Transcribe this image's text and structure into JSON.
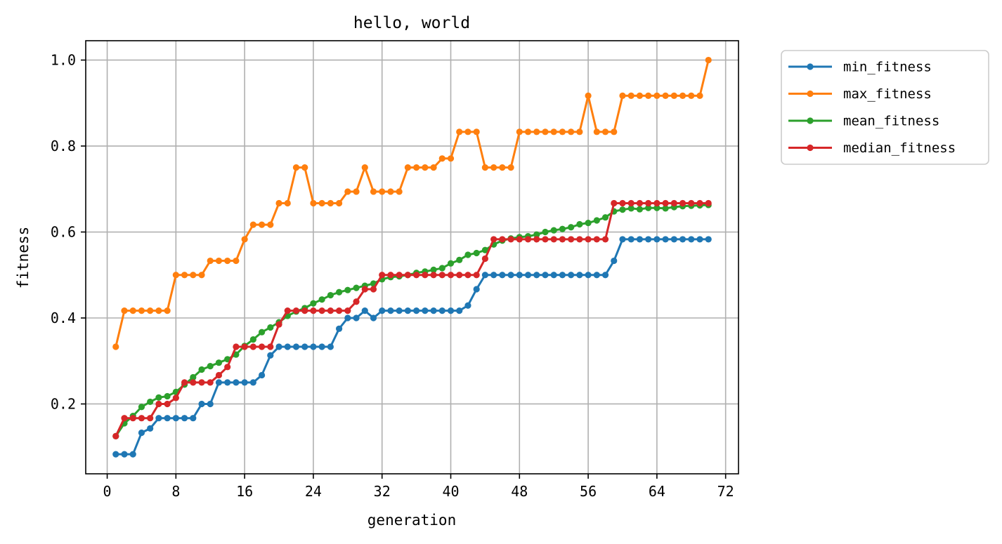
{
  "chart_data": {
    "type": "line",
    "title": "hello, world",
    "xlabel": "generation",
    "ylabel": "fitness",
    "xlim": [
      -2.5,
      73.5
    ],
    "ylim": [
      0.0375,
      1.045
    ],
    "xticks": [
      0,
      8,
      16,
      24,
      32,
      40,
      48,
      56,
      64,
      72
    ],
    "yticks": [
      0.2,
      0.4,
      0.6,
      0.8,
      1.0
    ],
    "ytick_labels": [
      "0.2",
      "0.4",
      "0.6",
      "0.8",
      "1.0"
    ],
    "grid": true,
    "legend_position": "outside-upper-right",
    "x": [
      1,
      2,
      3,
      4,
      5,
      6,
      7,
      8,
      9,
      10,
      11,
      12,
      13,
      14,
      15,
      16,
      17,
      18,
      19,
      20,
      21,
      22,
      23,
      24,
      25,
      26,
      27,
      28,
      29,
      30,
      31,
      32,
      33,
      34,
      35,
      36,
      37,
      38,
      39,
      40,
      41,
      42,
      43,
      44,
      45,
      46,
      47,
      48,
      49,
      50,
      51,
      52,
      53,
      54,
      55,
      56,
      57,
      58,
      59,
      60,
      61,
      62,
      63,
      64,
      65,
      66,
      67,
      68,
      69,
      70
    ],
    "series": [
      {
        "name": "min_fitness",
        "color": "#1f77b4",
        "values": [
          0.083,
          0.083,
          0.083,
          0.133,
          0.143,
          0.167,
          0.167,
          0.167,
          0.167,
          0.167,
          0.2,
          0.2,
          0.25,
          0.25,
          0.25,
          0.25,
          0.25,
          0.267,
          0.313,
          0.333,
          0.333,
          0.333,
          0.333,
          0.333,
          0.333,
          0.333,
          0.375,
          0.4,
          0.4,
          0.417,
          0.4,
          0.417,
          0.417,
          0.417,
          0.417,
          0.417,
          0.417,
          0.417,
          0.417,
          0.417,
          0.417,
          0.429,
          0.467,
          0.5,
          0.5,
          0.5,
          0.5,
          0.5,
          0.5,
          0.5,
          0.5,
          0.5,
          0.5,
          0.5,
          0.5,
          0.5,
          0.5,
          0.5,
          0.533,
          0.583,
          0.583,
          0.583,
          0.583,
          0.583,
          0.583,
          0.583,
          0.583,
          0.583,
          0.583,
          0.583
        ]
      },
      {
        "name": "max_fitness",
        "color": "#ff7f0e",
        "values": [
          0.333,
          0.417,
          0.417,
          0.417,
          0.417,
          0.417,
          0.417,
          0.5,
          0.5,
          0.5,
          0.5,
          0.533,
          0.533,
          0.533,
          0.533,
          0.583,
          0.617,
          0.617,
          0.617,
          0.667,
          0.667,
          0.75,
          0.75,
          0.667,
          0.667,
          0.667,
          0.667,
          0.694,
          0.694,
          0.75,
          0.694,
          0.694,
          0.694,
          0.694,
          0.75,
          0.75,
          0.75,
          0.75,
          0.771,
          0.771,
          0.833,
          0.833,
          0.833,
          0.75,
          0.75,
          0.75,
          0.75,
          0.833,
          0.833,
          0.833,
          0.833,
          0.833,
          0.833,
          0.833,
          0.833,
          0.917,
          0.833,
          0.833,
          0.833,
          0.917,
          0.917,
          0.917,
          0.917,
          0.917,
          0.917,
          0.917,
          0.917,
          0.917,
          0.917,
          1.0
        ]
      },
      {
        "name": "mean_fitness",
        "color": "#2ca02c",
        "values": [
          0.125,
          0.155,
          0.172,
          0.193,
          0.205,
          0.215,
          0.218,
          0.228,
          0.245,
          0.262,
          0.28,
          0.288,
          0.296,
          0.304,
          0.315,
          0.335,
          0.35,
          0.367,
          0.378,
          0.39,
          0.405,
          0.415,
          0.423,
          0.434,
          0.443,
          0.453,
          0.46,
          0.465,
          0.47,
          0.475,
          0.48,
          0.49,
          0.495,
          0.497,
          0.5,
          0.505,
          0.508,
          0.512,
          0.516,
          0.527,
          0.535,
          0.547,
          0.551,
          0.558,
          0.571,
          0.58,
          0.585,
          0.588,
          0.59,
          0.594,
          0.6,
          0.604,
          0.607,
          0.611,
          0.618,
          0.621,
          0.627,
          0.634,
          0.648,
          0.652,
          0.655,
          0.653,
          0.656,
          0.656,
          0.655,
          0.658,
          0.66,
          0.661,
          0.662,
          0.663
        ]
      },
      {
        "name": "median_fitness",
        "color": "#d62728",
        "values": [
          0.125,
          0.167,
          0.167,
          0.167,
          0.167,
          0.2,
          0.2,
          0.214,
          0.25,
          0.25,
          0.25,
          0.25,
          0.267,
          0.286,
          0.333,
          0.333,
          0.333,
          0.333,
          0.333,
          0.385,
          0.417,
          0.417,
          0.417,
          0.417,
          0.417,
          0.417,
          0.417,
          0.417,
          0.438,
          0.467,
          0.467,
          0.5,
          0.5,
          0.5,
          0.5,
          0.5,
          0.5,
          0.5,
          0.5,
          0.5,
          0.5,
          0.5,
          0.5,
          0.538,
          0.583,
          0.583,
          0.583,
          0.583,
          0.583,
          0.583,
          0.583,
          0.583,
          0.583,
          0.583,
          0.583,
          0.583,
          0.583,
          0.583,
          0.667,
          0.667,
          0.667,
          0.667,
          0.667,
          0.667,
          0.667,
          0.667,
          0.667,
          0.667,
          0.667,
          0.667
        ]
      }
    ]
  }
}
